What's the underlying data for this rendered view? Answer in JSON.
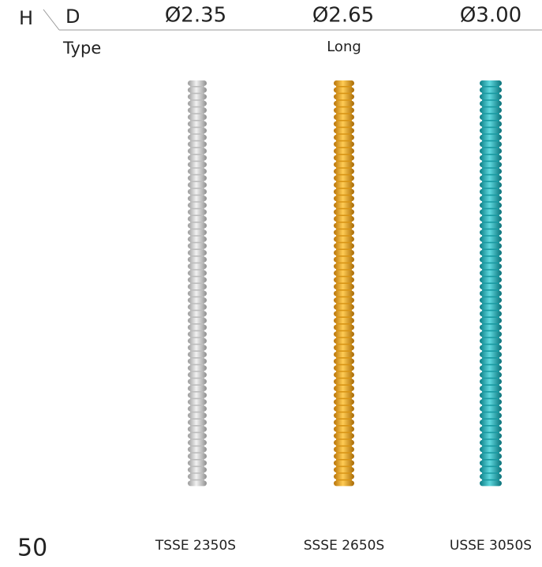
{
  "header": {
    "h": "H",
    "d": "D",
    "diameters": [
      "Ø2.35",
      "Ø2.65",
      "Ø3.00"
    ],
    "type_label": "Type",
    "type": "Long"
  },
  "footer": {
    "height": "50",
    "products": [
      "TSSE 2350S",
      "SSSE 2650S",
      "USSE 3050S"
    ]
  }
}
